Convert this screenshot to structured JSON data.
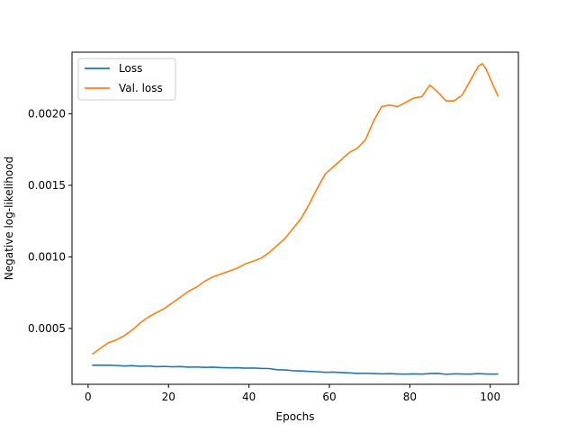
{
  "chart_data": {
    "type": "line",
    "title": "",
    "xlabel": "Epochs",
    "ylabel": "Negative log-likelihood",
    "xlim": [
      -4,
      107
    ],
    "ylim": [
      0.00011,
      0.00243
    ],
    "xticks": [
      0,
      20,
      40,
      60,
      80,
      100
    ],
    "yticks": [
      0.0005,
      0.001,
      0.0015,
      0.002
    ],
    "ytick_labels": [
      "0.0005",
      "0.0010",
      "0.0015",
      "0.0020"
    ],
    "grid": false,
    "legend_position": "top-left",
    "series": [
      {
        "name": "Loss",
        "color": "#1f77b4",
        "x": [
          1,
          3,
          5,
          7,
          9,
          11,
          13,
          15,
          17,
          19,
          21,
          23,
          25,
          27,
          29,
          31,
          33,
          35,
          37,
          39,
          41,
          43,
          45,
          47,
          49,
          51,
          53,
          55,
          57,
          59,
          61,
          63,
          65,
          67,
          69,
          71,
          73,
          75,
          77,
          79,
          81,
          83,
          85,
          87,
          89,
          91,
          93,
          95,
          97,
          99,
          101,
          102
        ],
        "y": [
          0.000243,
          0.000244,
          0.000243,
          0.000242,
          0.000238,
          0.00024,
          0.000236,
          0.000238,
          0.000233,
          0.000235,
          0.000232,
          0.000234,
          0.00023,
          0.000231,
          0.000228,
          0.00023,
          0.000227,
          0.000225,
          0.000226,
          0.000223,
          0.000224,
          0.000221,
          0.00022,
          0.000212,
          0.00021,
          0.000205,
          0.000203,
          0.0002,
          0.000198,
          0.000194,
          0.000195,
          0.000192,
          0.00019,
          0.000186,
          0.000187,
          0.000185,
          0.000183,
          0.000184,
          0.000182,
          0.000181,
          0.000183,
          0.000181,
          0.000185,
          0.000186,
          0.00018,
          0.000183,
          0.000182,
          0.000181,
          0.000184,
          0.000182,
          0.000181,
          0.000182
        ]
      },
      {
        "name": "Val. loss",
        "color": "#ff7f0e",
        "x": [
          1,
          3,
          5,
          7,
          9,
          11,
          13,
          15,
          17,
          19,
          21,
          23,
          25,
          27,
          29,
          31,
          33,
          35,
          37,
          39,
          41,
          43,
          45,
          47,
          49,
          51,
          53,
          55,
          57,
          59,
          61,
          63,
          65,
          67,
          69,
          71,
          73,
          75,
          77,
          79,
          81,
          83,
          85,
          87,
          89,
          91,
          93,
          95,
          97,
          98,
          99,
          101,
          102
        ],
        "y": [
          0.00032,
          0.00036,
          0.0004,
          0.00042,
          0.00045,
          0.00049,
          0.00054,
          0.00058,
          0.00061,
          0.00064,
          0.00068,
          0.00072,
          0.00076,
          0.00079,
          0.00083,
          0.00086,
          0.00088,
          0.0009,
          0.00092,
          0.00095,
          0.00097,
          0.00099,
          0.00103,
          0.00108,
          0.00113,
          0.0012,
          0.00127,
          0.00137,
          0.00148,
          0.00158,
          0.00163,
          0.00168,
          0.00173,
          0.00176,
          0.00182,
          0.00195,
          0.00205,
          0.00206,
          0.00205,
          0.00208,
          0.00211,
          0.00212,
          0.0022,
          0.00215,
          0.00209,
          0.00209,
          0.00213,
          0.00223,
          0.00233,
          0.00235,
          0.00231,
          0.00218,
          0.00212
        ]
      }
    ]
  }
}
